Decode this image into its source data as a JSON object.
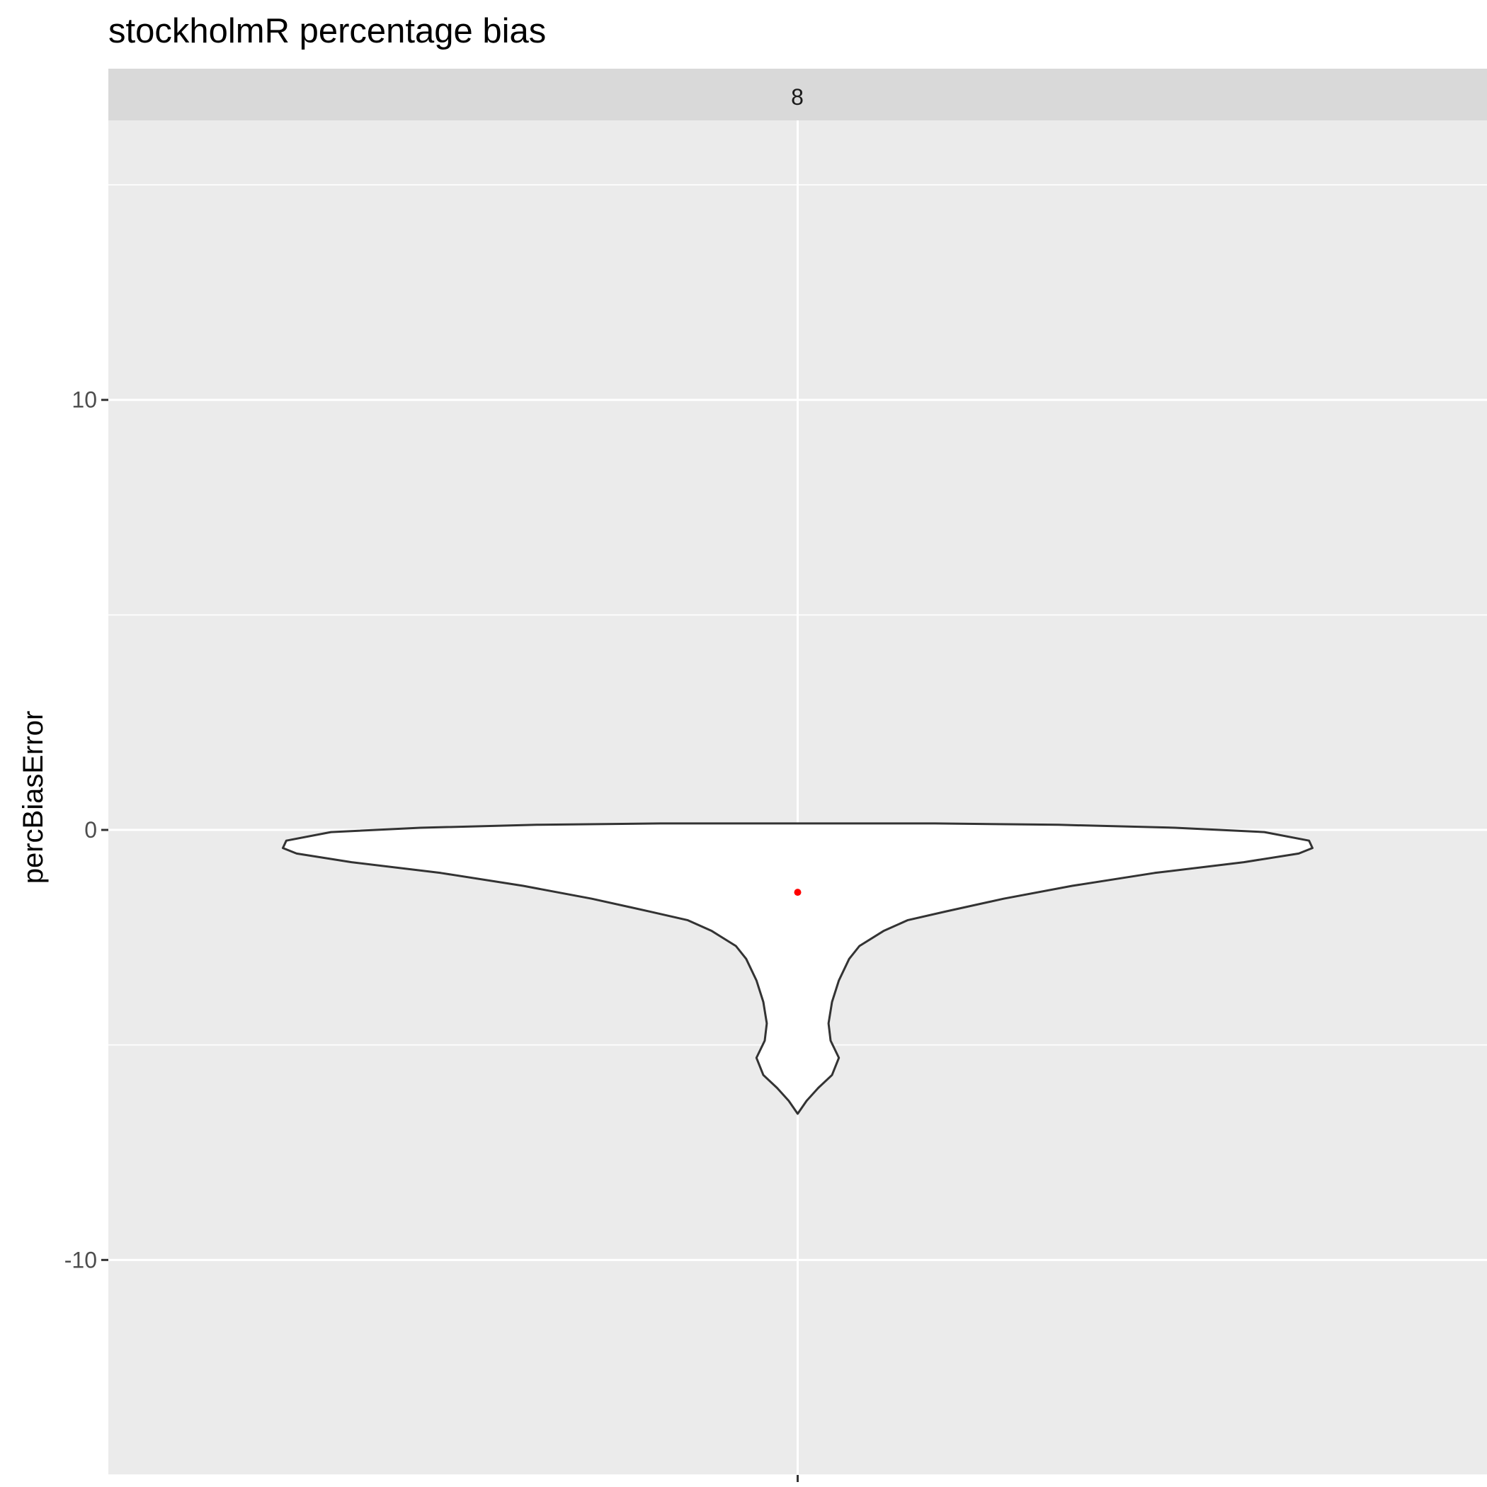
{
  "chart_data": {
    "type": "violin",
    "title": "stockholmR percentage bias",
    "xlabel": "",
    "ylabel": "percBiasError",
    "facet_label": "8",
    "ylim": [
      -15,
      16.5
    ],
    "y_major_ticks": [
      -10,
      0,
      10
    ],
    "y_minor_ticks": [
      -15,
      -5,
      5,
      15
    ],
    "x_categories": [
      ""
    ],
    "grid": true,
    "violin": {
      "fill": "#ffffff",
      "outline": "#333333",
      "max_half_width": 7.5,
      "profile": [
        {
          "y": 0.15,
          "half_width": 2.0
        },
        {
          "y": 0.12,
          "half_width": 3.8
        },
        {
          "y": 0.05,
          "half_width": 5.5
        },
        {
          "y": -0.05,
          "half_width": 6.8
        },
        {
          "y": -0.25,
          "half_width": 7.45
        },
        {
          "y": -0.42,
          "half_width": 7.5
        },
        {
          "y": -0.55,
          "half_width": 7.3
        },
        {
          "y": -0.75,
          "half_width": 6.5
        },
        {
          "y": -1.0,
          "half_width": 5.2
        },
        {
          "y": -1.3,
          "half_width": 4.0
        },
        {
          "y": -1.6,
          "half_width": 3.0
        },
        {
          "y": -1.9,
          "half_width": 2.15
        },
        {
          "y": -2.1,
          "half_width": 1.6
        },
        {
          "y": -2.35,
          "half_width": 1.25
        },
        {
          "y": -2.7,
          "half_width": 0.9
        },
        {
          "y": -3.0,
          "half_width": 0.75
        },
        {
          "y": -3.5,
          "half_width": 0.6
        },
        {
          "y": -4.0,
          "half_width": 0.5
        },
        {
          "y": -4.5,
          "half_width": 0.45
        },
        {
          "y": -4.9,
          "half_width": 0.48
        },
        {
          "y": -5.3,
          "half_width": 0.6
        },
        {
          "y": -5.7,
          "half_width": 0.5
        },
        {
          "y": -6.0,
          "half_width": 0.3
        },
        {
          "y": -6.3,
          "half_width": 0.13
        },
        {
          "y": -6.6,
          "half_width": 0.0
        }
      ]
    },
    "mean_point": {
      "y": -1.45,
      "color": "#ff0000"
    }
  }
}
